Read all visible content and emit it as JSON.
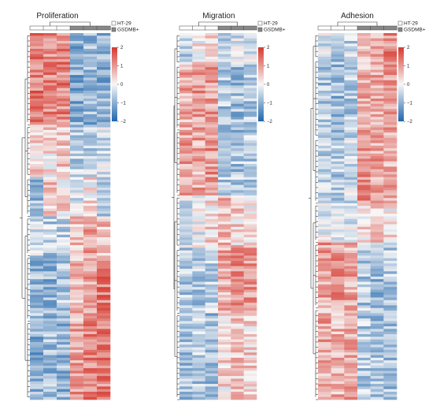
{
  "chart_data": [
    {
      "type": "heatmap",
      "title": "Proliferation",
      "columns": [
        "HT-29",
        "HT-29",
        "HT-29",
        "GSDMB+",
        "GSDMB+",
        "GSDMB+"
      ],
      "column_groups": [
        {
          "name": "HT-29",
          "color": "#ffffff"
        },
        {
          "name": "GSDMB+",
          "color": "#888888"
        }
      ],
      "row_blocks": [
        {
          "rows": 35,
          "pattern": [
            1.3,
            1.1,
            1.2,
            -1.0,
            -0.9,
            -1.0
          ]
        },
        {
          "rows": 20,
          "pattern": [
            0.4,
            0.3,
            0.5,
            -0.6,
            -0.5,
            -0.4
          ]
        },
        {
          "rows": 15,
          "pattern": [
            -0.8,
            0.6,
            0.3,
            -0.2,
            0.2,
            -0.5
          ]
        },
        {
          "rows": 15,
          "pattern": [
            -0.4,
            -0.6,
            -0.5,
            0.5,
            0.8,
            0.6
          ]
        },
        {
          "rows": 25,
          "pattern": [
            -0.8,
            -0.9,
            -0.6,
            0.7,
            0.9,
            1.3
          ]
        },
        {
          "rows": 30,
          "pattern": [
            -1.0,
            -0.8,
            -0.9,
            0.9,
            1.2,
            1.2
          ]
        }
      ],
      "color_scale": {
        "min": -2,
        "max": 2,
        "low": "#2166ac",
        "mid": "#f7f7f7",
        "high": "#d6392f"
      },
      "colorbar_ticks": [
        "2",
        "1",
        "0",
        "−1",
        "−2"
      ],
      "legend": [
        "HT-29",
        "GSDMB+"
      ]
    },
    {
      "type": "heatmap",
      "title": "Migration",
      "columns": [
        "HT-29",
        "HT-29",
        "HT-29",
        "GSDMB+",
        "GSDMB+",
        "GSDMB+"
      ],
      "column_groups": [
        {
          "name": "HT-29",
          "color": "#ffffff"
        },
        {
          "name": "GSDMB+",
          "color": "#888888"
        }
      ],
      "row_blocks": [
        {
          "rows": 12,
          "pattern": [
            -0.6,
            0.2,
            0.5,
            -0.4,
            -0.3,
            -0.2
          ]
        },
        {
          "rows": 25,
          "pattern": [
            0.8,
            1.0,
            0.9,
            -0.7,
            -0.8,
            -0.6
          ]
        },
        {
          "rows": 25,
          "pattern": [
            0.9,
            0.8,
            1.0,
            -0.6,
            -0.7,
            -0.6
          ]
        },
        {
          "rows": 20,
          "pattern": [
            -0.3,
            -0.2,
            0.3,
            0.6,
            0.4,
            0.2
          ]
        },
        {
          "rows": 25,
          "pattern": [
            -0.6,
            -0.7,
            -0.5,
            0.8,
            1.0,
            0.9
          ]
        },
        {
          "rows": 33,
          "pattern": [
            -0.7,
            -0.6,
            -0.8,
            0.3,
            0.5,
            0.4
          ]
        }
      ],
      "color_scale": {
        "min": -2,
        "max": 2,
        "low": "#2166ac",
        "mid": "#f7f7f7",
        "high": "#d6392f"
      },
      "colorbar_ticks": [
        "2",
        "1",
        "0",
        "−1",
        "−2"
      ],
      "legend": [
        "HT-29",
        "GSDMB+"
      ]
    },
    {
      "type": "heatmap",
      "title": "Adhesion",
      "columns": [
        "HT-29",
        "HT-29",
        "HT-29",
        "GSDMB+",
        "GSDMB+",
        "GSDMB+"
      ],
      "column_groups": [
        {
          "name": "HT-29",
          "color": "#ffffff"
        },
        {
          "name": "GSDMB+",
          "color": "#888888"
        }
      ],
      "row_blocks": [
        {
          "rows": 10,
          "pattern": [
            -0.3,
            -0.7,
            -0.5,
            0.4,
            0.9,
            1.1
          ]
        },
        {
          "rows": 30,
          "pattern": [
            -0.7,
            -0.8,
            -0.6,
            0.7,
            0.8,
            0.9
          ]
        },
        {
          "rows": 25,
          "pattern": [
            -0.5,
            -0.6,
            -0.4,
            1.0,
            0.9,
            0.7
          ]
        },
        {
          "rows": 15,
          "pattern": [
            -0.2,
            -0.3,
            -0.1,
            0.3,
            0.5,
            0.2
          ]
        },
        {
          "rows": 25,
          "pattern": [
            0.9,
            1.0,
            0.8,
            -0.7,
            -0.8,
            -0.6
          ]
        },
        {
          "rows": 35,
          "pattern": [
            0.8,
            0.7,
            0.9,
            -0.6,
            -0.7,
            -0.8
          ]
        }
      ],
      "color_scale": {
        "min": -2,
        "max": 2,
        "low": "#2166ac",
        "mid": "#f7f7f7",
        "high": "#d6392f"
      },
      "colorbar_ticks": [
        "2",
        "1",
        "0",
        "−1",
        "−2"
      ],
      "legend": [
        "HT-29",
        "GSDMB+"
      ]
    }
  ]
}
